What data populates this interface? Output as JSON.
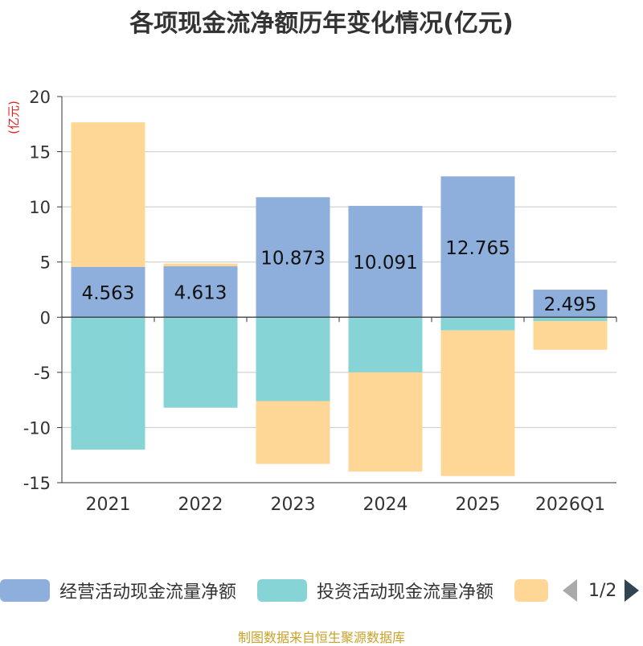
{
  "chart_data": {
    "type": "bar",
    "stacked": true,
    "title": "各项现金流净额历年变化情况(亿元)",
    "ylabel": "(亿元)",
    "xlabel": "",
    "ylim": [
      -15,
      20
    ],
    "yticks": [
      -15,
      -10,
      -5,
      0,
      5,
      10,
      15,
      20
    ],
    "categories": [
      "2021",
      "2022",
      "2023",
      "2024",
      "2025",
      "2026Q1"
    ],
    "series": [
      {
        "name": "经营活动现金流量净额",
        "color": "#8eaedb",
        "values": [
          4.563,
          4.613,
          10.873,
          10.091,
          12.765,
          2.495
        ],
        "labels": [
          "4.563",
          "4.613",
          "10.873",
          "10.091",
          "12.765",
          "2.495"
        ]
      },
      {
        "name": "投资活动现金流量净额",
        "color": "#86d4d6",
        "values": [
          -12.0,
          -8.2,
          -7.6,
          -5.0,
          -1.2,
          -0.35
        ]
      },
      {
        "name": "",
        "color": "#fed796",
        "values": [
          13.1,
          0.25,
          -5.7,
          -9.0,
          -13.2,
          -2.6
        ]
      }
    ],
    "grid": true,
    "legend_position": "bottom"
  },
  "legend": {
    "items": [
      {
        "label": "经营活动现金流量净额",
        "color": "#8eaedb"
      },
      {
        "label": "投资活动现金流量净额",
        "color": "#86d4d6"
      },
      {
        "label": "",
        "color": "#fed796"
      }
    ],
    "page": "1/2"
  },
  "source": "制图数据来自恒生聚源数据库"
}
